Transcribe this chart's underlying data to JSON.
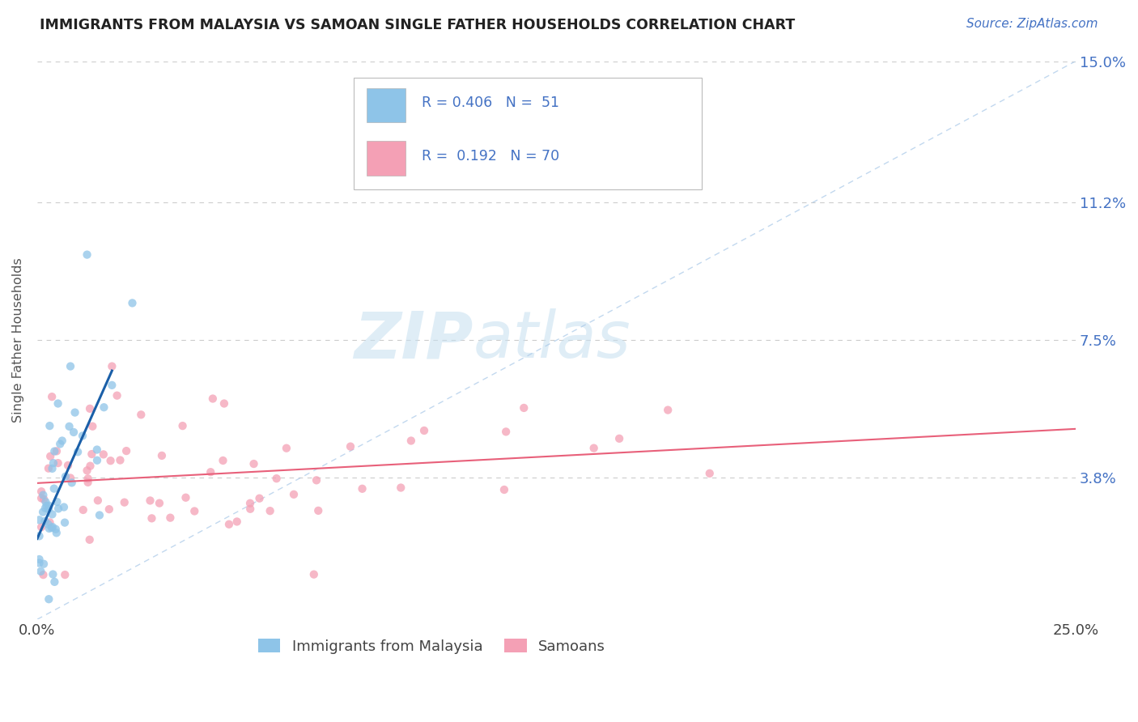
{
  "title": "IMMIGRANTS FROM MALAYSIA VS SAMOAN SINGLE FATHER HOUSEHOLDS CORRELATION CHART",
  "source_text": "Source: ZipAtlas.com",
  "ylabel": "Single Father Households",
  "xlim": [
    0.0,
    0.25
  ],
  "ylim": [
    0.0,
    0.15
  ],
  "xtick_labels": [
    "0.0%",
    "25.0%"
  ],
  "xtick_positions": [
    0.0,
    0.25
  ],
  "ytick_labels": [
    "15.0%",
    "11.2%",
    "7.5%",
    "3.8%"
  ],
  "ytick_positions": [
    0.15,
    0.112,
    0.075,
    0.038
  ],
  "legend_label1": "Immigrants from Malaysia",
  "legend_label2": "Samoans",
  "color_blue": "#8ec4e8",
  "color_pink": "#f4a0b5",
  "color_blue_line": "#1a5fa8",
  "color_pink_line": "#e8607a",
  "color_diagonal": "#a8c8e8",
  "watermark_zip": "ZIP",
  "watermark_atlas": "atlas",
  "title_fontsize": 12.5,
  "legend_text_color": "#4472c4"
}
